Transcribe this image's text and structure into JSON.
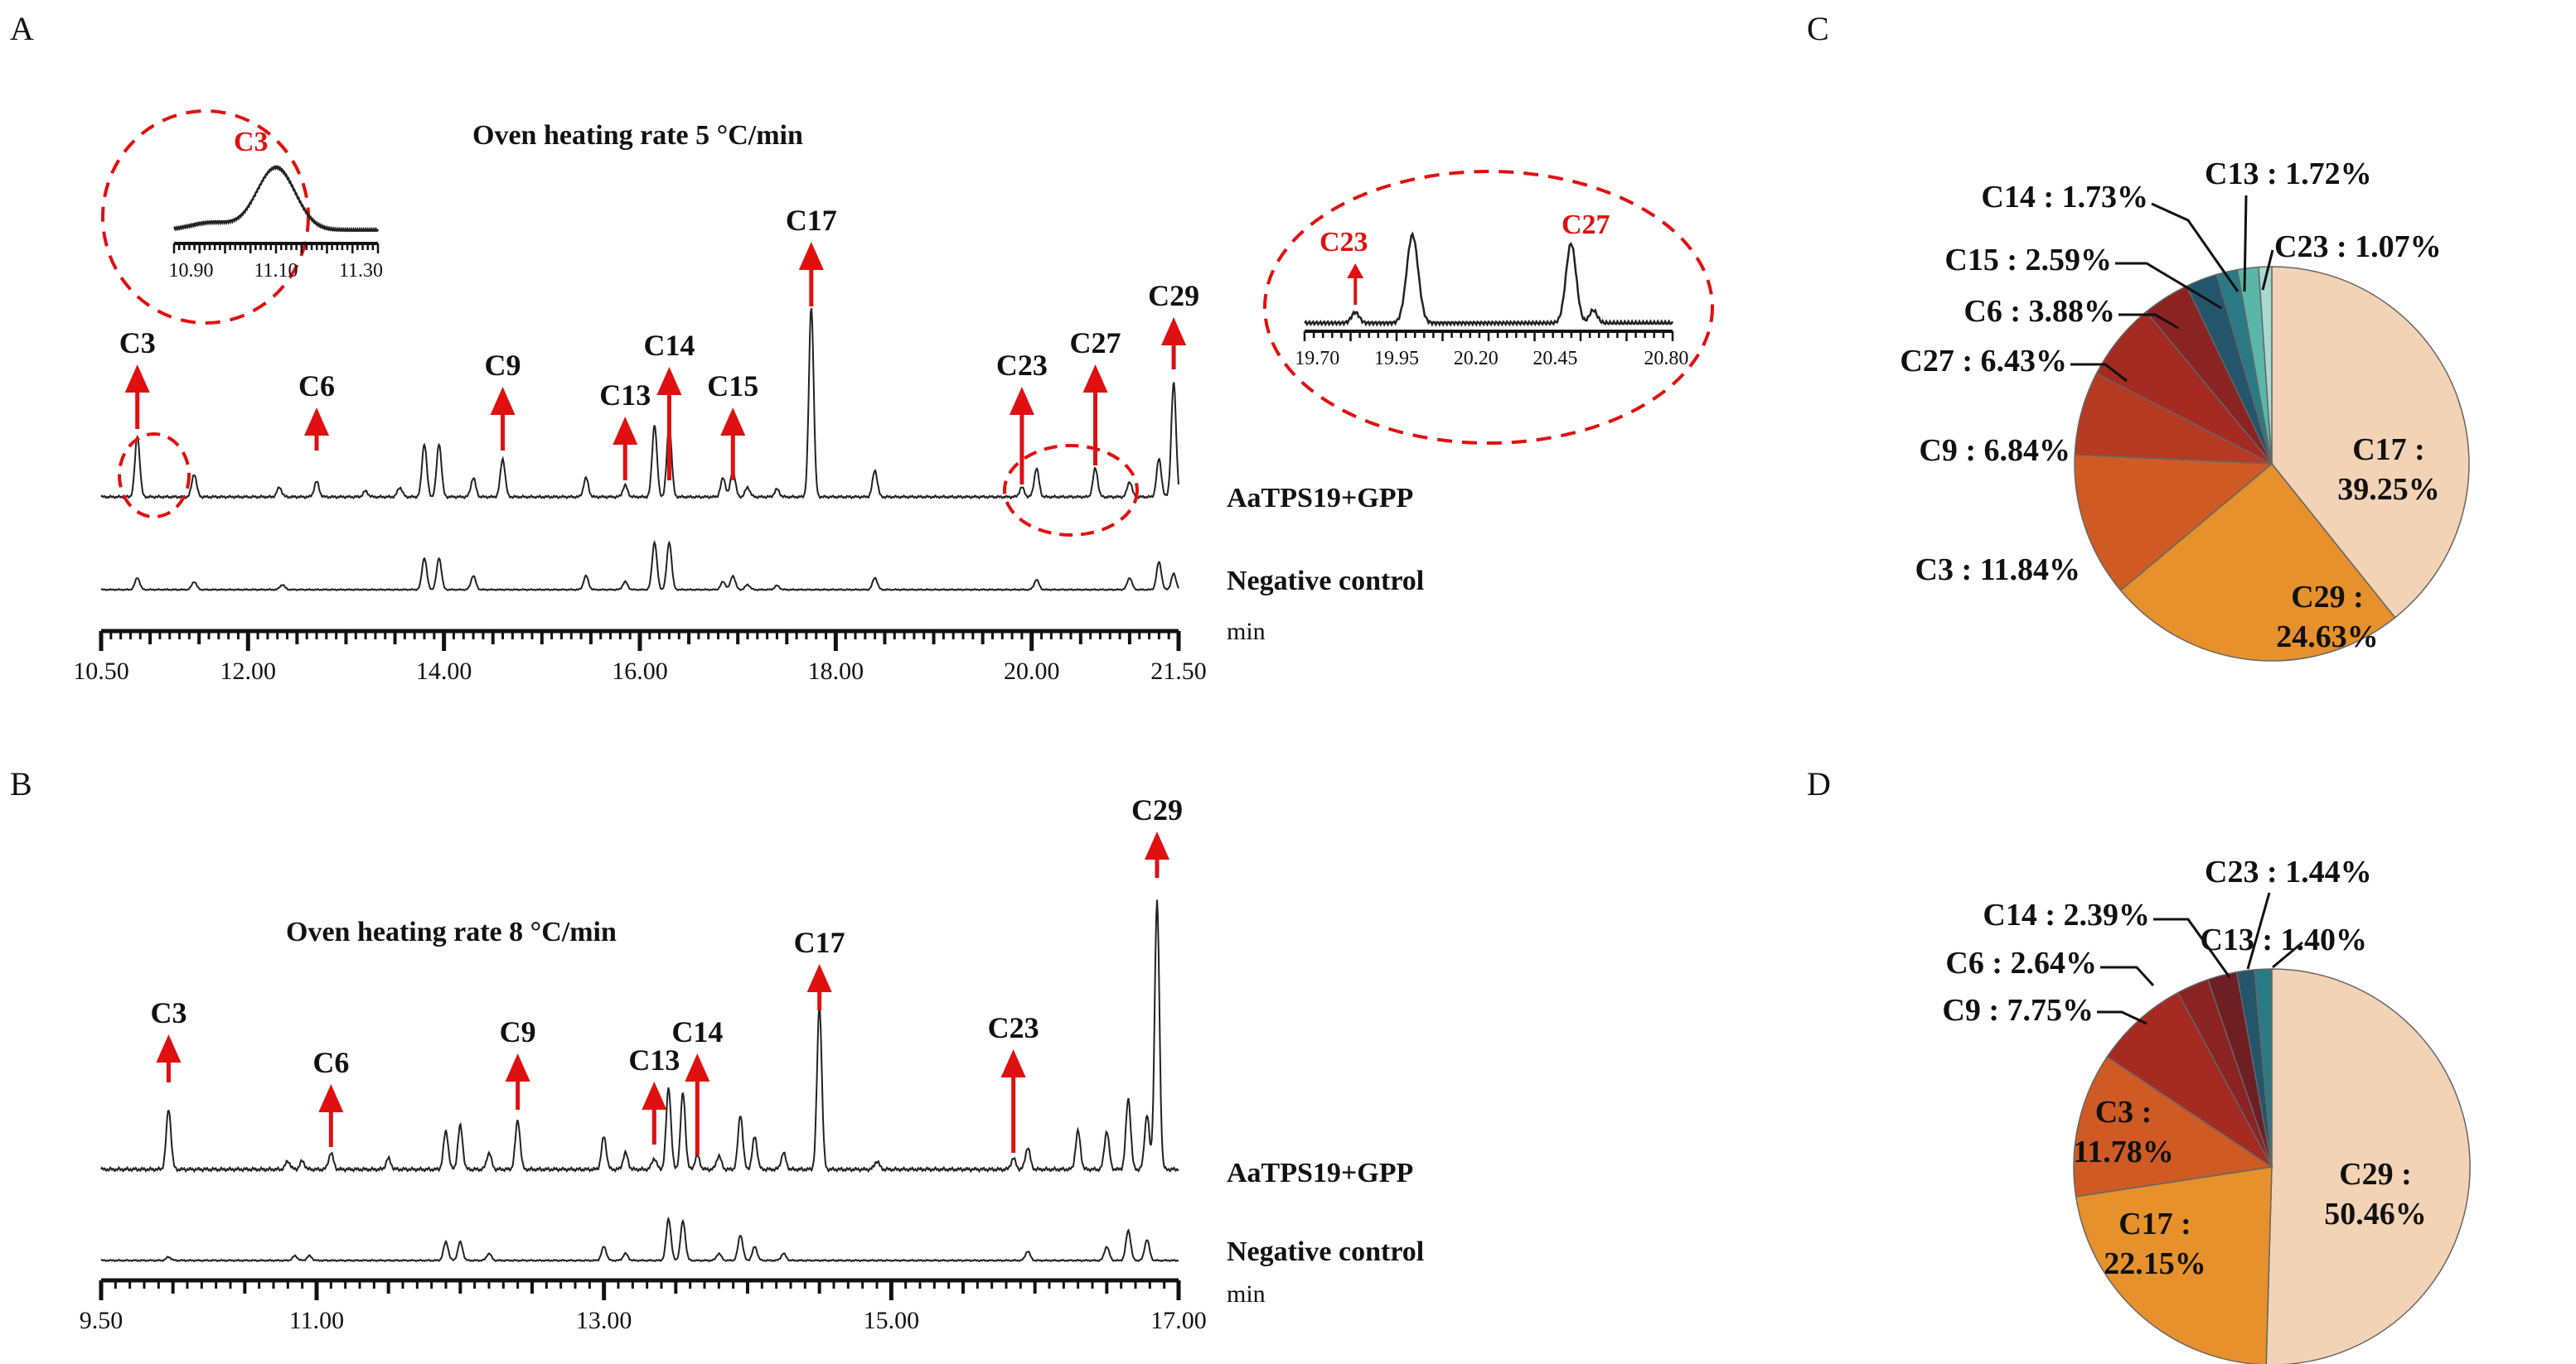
{
  "panels": {
    "A": {
      "letter": "A",
      "title": "Oven heating rate 5 °C/min",
      "axis_unit": "min",
      "traces": [
        "AaTPS19+GPP",
        "Negative control"
      ],
      "tick_labels": [
        "10.50",
        "12.00",
        "14.00",
        "16.00",
        "18.00",
        "20.00",
        "21.50"
      ],
      "inset_left": {
        "peak": "C3",
        "ticks": [
          "10.90",
          "11.10",
          "11.30"
        ]
      },
      "inset_right": {
        "peaks": [
          "C23",
          "C27"
        ],
        "ticks": [
          "19.70",
          "19.95",
          "20.20",
          "20.45",
          "20.80"
        ]
      }
    },
    "B": {
      "letter": "B",
      "title": "Oven heating rate 8 °C/min",
      "axis_unit": "min",
      "traces": [
        "AaTPS19+GPP",
        "Negative control"
      ],
      "tick_labels": [
        "9.50",
        "11.00",
        "13.00",
        "15.00",
        "17.00"
      ]
    },
    "C": {
      "letter": "C"
    },
    "D": {
      "letter": "D"
    }
  },
  "chart_data": [
    {
      "type": "line",
      "panel": "A",
      "title": "Oven heating rate 5 °C/min",
      "xlabel": "min",
      "xlim": [
        10.5,
        21.5
      ],
      "series": [
        {
          "name": "AaTPS19+GPP",
          "peaks": [
            [
              10.87,
              0.32
            ],
            [
              11.45,
              0.12
            ],
            [
              12.32,
              0.05
            ],
            [
              12.7,
              0.08
            ],
            [
              13.2,
              0.03
            ],
            [
              13.55,
              0.05
            ],
            [
              13.8,
              0.28
            ],
            [
              13.95,
              0.28
            ],
            [
              14.3,
              0.1
            ],
            [
              14.6,
              0.2
            ],
            [
              15.45,
              0.1
            ],
            [
              15.85,
              0.06
            ],
            [
              16.15,
              0.38
            ],
            [
              16.3,
              0.38
            ],
            [
              16.85,
              0.1
            ],
            [
              16.95,
              0.14
            ],
            [
              17.1,
              0.05
            ],
            [
              17.4,
              0.04
            ],
            [
              17.75,
              1.0
            ],
            [
              18.4,
              0.14
            ],
            [
              19.9,
              0.05
            ],
            [
              20.05,
              0.15
            ],
            [
              20.65,
              0.15
            ],
            [
              21.0,
              0.08
            ],
            [
              21.3,
              0.2
            ],
            [
              21.45,
              0.6
            ]
          ]
        },
        {
          "name": "Negative control",
          "peaks": [
            [
              10.87,
              0.12
            ],
            [
              11.45,
              0.08
            ],
            [
              12.35,
              0.05
            ],
            [
              13.8,
              0.32
            ],
            [
              13.95,
              0.32
            ],
            [
              14.3,
              0.14
            ],
            [
              15.45,
              0.14
            ],
            [
              15.85,
              0.08
            ],
            [
              16.15,
              0.48
            ],
            [
              16.3,
              0.48
            ],
            [
              16.85,
              0.08
            ],
            [
              16.95,
              0.14
            ],
            [
              17.1,
              0.05
            ],
            [
              17.4,
              0.04
            ],
            [
              18.4,
              0.12
            ],
            [
              20.05,
              0.1
            ],
            [
              21.0,
              0.12
            ],
            [
              21.3,
              0.28
            ],
            [
              21.45,
              0.16
            ]
          ]
        }
      ],
      "annotations": [
        {
          "label": "C3",
          "x": 10.87
        },
        {
          "label": "C6",
          "x": 12.7
        },
        {
          "label": "C9",
          "x": 14.6
        },
        {
          "label": "C13",
          "x": 15.85
        },
        {
          "label": "C14",
          "x": 16.3
        },
        {
          "label": "C15",
          "x": 16.95
        },
        {
          "label": "C17",
          "x": 17.75
        },
        {
          "label": "C23",
          "x": 19.9
        },
        {
          "label": "C27",
          "x": 20.65
        },
        {
          "label": "C29",
          "x": 21.45
        }
      ]
    },
    {
      "type": "line",
      "panel": "B",
      "title": "Oven heating rate 8 °C/min",
      "xlabel": "min",
      "xlim": [
        9.5,
        17.0
      ],
      "series": [
        {
          "name": "AaTPS19+GPP",
          "peaks": [
            [
              9.97,
              0.22
            ],
            [
              10.8,
              0.03
            ],
            [
              10.9,
              0.03
            ],
            [
              11.1,
              0.06
            ],
            [
              11.5,
              0.04
            ],
            [
              11.9,
              0.14
            ],
            [
              12.0,
              0.16
            ],
            [
              12.2,
              0.06
            ],
            [
              12.4,
              0.18
            ],
            [
              13.0,
              0.12
            ],
            [
              13.15,
              0.06
            ],
            [
              13.35,
              0.04
            ],
            [
              13.45,
              0.3
            ],
            [
              13.55,
              0.28
            ],
            [
              13.65,
              0.05
            ],
            [
              13.8,
              0.05
            ],
            [
              13.95,
              0.2
            ],
            [
              14.05,
              0.12
            ],
            [
              14.25,
              0.06
            ],
            [
              14.5,
              0.6
            ],
            [
              14.9,
              0.03
            ],
            [
              15.85,
              0.04
            ],
            [
              15.95,
              0.08
            ],
            [
              16.3,
              0.14
            ],
            [
              16.5,
              0.14
            ],
            [
              16.65,
              0.26
            ],
            [
              16.78,
              0.2
            ],
            [
              16.85,
              0.98
            ]
          ]
        },
        {
          "name": "Negative control",
          "peaks": [
            [
              9.97,
              0.03
            ],
            [
              10.85,
              0.04
            ],
            [
              10.95,
              0.04
            ],
            [
              11.9,
              0.16
            ],
            [
              12.0,
              0.16
            ],
            [
              12.2,
              0.06
            ],
            [
              13.0,
              0.12
            ],
            [
              13.15,
              0.06
            ],
            [
              13.45,
              0.36
            ],
            [
              13.55,
              0.34
            ],
            [
              13.8,
              0.06
            ],
            [
              13.95,
              0.22
            ],
            [
              14.05,
              0.12
            ],
            [
              14.25,
              0.06
            ],
            [
              15.95,
              0.08
            ],
            [
              16.5,
              0.12
            ],
            [
              16.65,
              0.26
            ],
            [
              16.78,
              0.18
            ]
          ]
        }
      ],
      "annotations": [
        {
          "label": "C3",
          "x": 9.97
        },
        {
          "label": "C6",
          "x": 11.1
        },
        {
          "label": "C9",
          "x": 12.4
        },
        {
          "label": "C13",
          "x": 13.35
        },
        {
          "label": "C14",
          "x": 13.65
        },
        {
          "label": "C17",
          "x": 14.5
        },
        {
          "label": "C23",
          "x": 15.85
        },
        {
          "label": "C29",
          "x": 16.85
        }
      ]
    },
    {
      "type": "pie",
      "panel": "C",
      "slices": [
        {
          "name": "C17",
          "label_text": "C17 :",
          "pct_text": "39.25%",
          "value": 39.25,
          "color": "#f2d3b6",
          "placement": "inside"
        },
        {
          "name": "C29",
          "label_text": "C29 :",
          "pct_text": "24.63%",
          "value": 24.63,
          "color": "#e6912c",
          "placement": "inside"
        },
        {
          "name": "C3",
          "label_text": "C3 : 11.84%",
          "value": 11.84,
          "color": "#cf5a24",
          "placement": "outside"
        },
        {
          "name": "C9",
          "label_text": "C9 : 6.84%",
          "value": 6.84,
          "color": "#b73a22",
          "placement": "outside"
        },
        {
          "name": "C27",
          "label_text": "C27 : 6.43%",
          "value": 6.43,
          "color": "#a52a22",
          "placement": "outside"
        },
        {
          "name": "C6",
          "label_text": "C6 : 3.88%",
          "value": 3.88,
          "color": "#8b2323",
          "placement": "outside"
        },
        {
          "name": "C15",
          "label_text": "C15 : 2.59%",
          "value": 2.59,
          "color": "#24556b",
          "placement": "outside"
        },
        {
          "name": "C14",
          "label_text": "C14 : 1.73%",
          "value": 1.73,
          "color": "#2a7a86",
          "placement": "outside"
        },
        {
          "name": "C13",
          "label_text": "C13 : 1.72%",
          "value": 1.72,
          "color": "#5ab7a8",
          "placement": "outside"
        },
        {
          "name": "C23",
          "label_text": "C23 : 1.07%",
          "value": 1.07,
          "color": "#a8d8d0",
          "placement": "outside"
        }
      ]
    },
    {
      "type": "pie",
      "panel": "D",
      "slices": [
        {
          "name": "C29",
          "label_text": "C29 :",
          "pct_text": "50.46%",
          "value": 50.46,
          "color": "#f2d3b6",
          "placement": "inside"
        },
        {
          "name": "C17",
          "label_text": "C17 :",
          "pct_text": "22.15%",
          "value": 22.15,
          "color": "#e6912c",
          "placement": "inside"
        },
        {
          "name": "C3",
          "label_text": "C3 :",
          "pct_text": "11.78%",
          "value": 11.78,
          "color": "#cf5a24",
          "placement": "inside"
        },
        {
          "name": "C9",
          "label_text": "C9 : 7.75%",
          "value": 7.75,
          "color": "#a52a22",
          "placement": "outside"
        },
        {
          "name": "C6",
          "label_text": "C6 : 2.64%",
          "value": 2.64,
          "color": "#8b2323",
          "placement": "outside"
        },
        {
          "name": "C14",
          "label_text": "C14 : 2.39%",
          "value": 2.39,
          "color": "#6e1f24",
          "placement": "outside"
        },
        {
          "name": "C23",
          "label_text": "C23 : 1.44%",
          "value": 1.44,
          "color": "#24556b",
          "placement": "outside"
        },
        {
          "name": "C13",
          "label_text": "C13 : 1.40%",
          "value": 1.4,
          "color": "#2a7a86",
          "placement": "outside"
        }
      ]
    }
  ]
}
